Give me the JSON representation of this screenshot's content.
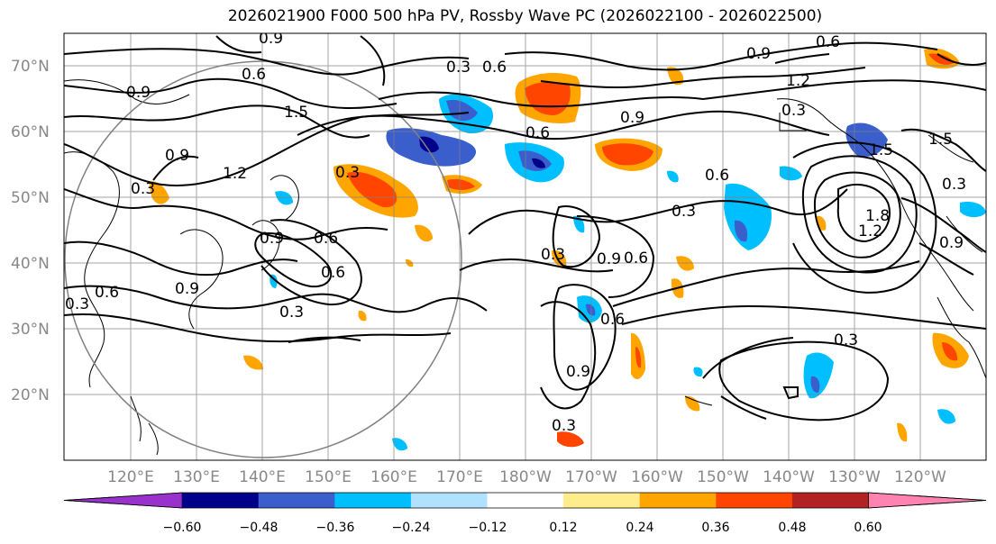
{
  "title": "2026021900 F000 500 hPa PV, Rossby Wave PC (2026022100 - 2026022500)",
  "lat_labels": [
    "70°N",
    "60°N",
    "50°N",
    "40°N",
    "30°N",
    "20°N"
  ],
  "lon_labels": [
    "120°E",
    "130°E",
    "140°E",
    "150°E",
    "160°E",
    "170°E",
    "180°W",
    "170°W",
    "160°W",
    "150°W",
    "140°W",
    "130°W",
    "120°W"
  ],
  "contour_labels": [
    "0.9",
    "0.6",
    "1.5",
    "0.9",
    "1.2",
    "0.3",
    "0.3",
    "0.9",
    "0.6",
    "0.3",
    "0.6",
    "0.3",
    "0.6",
    "0.9",
    "0.3",
    "0.6",
    "0.9",
    "1.2",
    "0.6",
    "0.3",
    "0.9",
    "0.6",
    "0.3",
    "0.9",
    "0.6",
    "0.3",
    "0.3",
    "0.6",
    "0.9",
    "0.6",
    "1.5",
    "1.2",
    "0.3",
    "0.9",
    "1.8",
    "0.9",
    "1.5",
    "0.3"
  ],
  "colorbar": {
    "ticks": [
      "−0.60",
      "−0.48",
      "−0.36",
      "−0.24",
      "−0.12",
      "0.12",
      "0.24",
      "0.36",
      "0.48",
      "0.60"
    ],
    "colors": [
      "#9932cc",
      "#00008b",
      "#3a5fcd",
      "#00bfff",
      "#b0e2ff",
      "#ffffff",
      "#ffec8b",
      "#ffa500",
      "#ff4500",
      "#b22222",
      "#ff83b0"
    ]
  },
  "legend_colors": {
    "contour": "#000000",
    "grid": "#808080",
    "circle": "#808080"
  }
}
